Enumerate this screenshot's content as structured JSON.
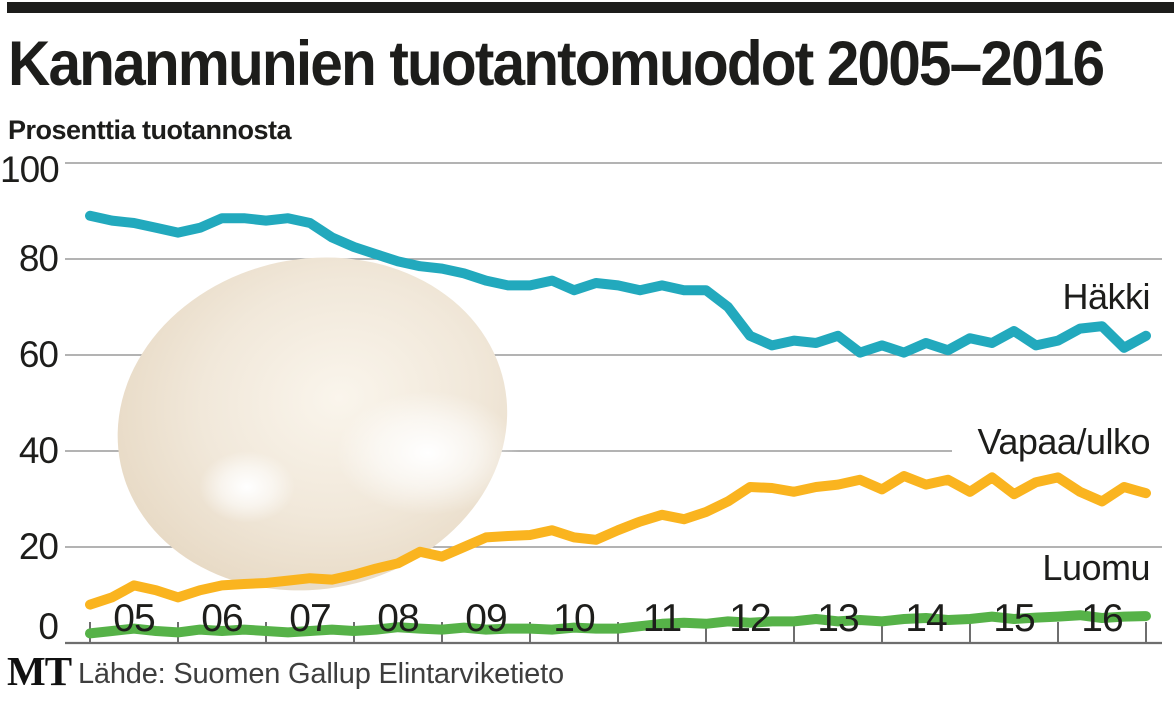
{
  "header": {
    "title": "Kananmunien tuotantomuodot 2005–2016",
    "subtitle": "Prosenttia tuotannosta"
  },
  "chart_data": {
    "type": "line",
    "title": "Kananmunien tuotantomuodot 2005–2016",
    "ylabel": "Prosenttia tuotannosta",
    "xlabel": "",
    "ylim": [
      0,
      100
    ],
    "grid": true,
    "legend_position": "right-inline",
    "x_start": 2005,
    "x_step": 0.25,
    "x_tick_labels": [
      "05",
      "06",
      "07",
      "08",
      "09",
      "10",
      "11",
      "12",
      "13",
      "14",
      "15",
      "16"
    ],
    "y_ticks": [
      100,
      80,
      60,
      40,
      20,
      0
    ],
    "series": [
      {
        "name": "Häkki",
        "color": "#22a9bd",
        "values": [
          89,
          88,
          87.5,
          86.5,
          85.5,
          86.5,
          88.5,
          88.5,
          88,
          88.5,
          87.5,
          84.5,
          82.5,
          81,
          79.5,
          78.5,
          78,
          77,
          75.5,
          74.5,
          74.5,
          75.5,
          73.5,
          75,
          74.5,
          73.5,
          74.5,
          73.5,
          73.5,
          70,
          64,
          62,
          63,
          62.5,
          64,
          60.5,
          62,
          60.5,
          62.5,
          61,
          63.5,
          62.5,
          65,
          62,
          63,
          65.5,
          66,
          61.5,
          64
        ]
      },
      {
        "name": "Vapaa/ulko",
        "color": "#fab41f",
        "values": [
          8,
          9.5,
          12,
          11,
          9.5,
          11,
          12,
          12.3,
          12.5,
          13,
          13.5,
          13.2,
          14.2,
          15.5,
          16.6,
          19,
          18,
          20,
          22,
          22.3,
          22.5,
          23.5,
          22,
          21.5,
          23.5,
          25.3,
          26.7,
          25.8,
          27.3,
          29.5,
          32.5,
          32.3,
          31.5,
          32.5,
          33,
          34,
          32,
          34.8,
          33,
          34,
          31.5,
          34.5,
          31,
          33.5,
          34.5,
          31.5,
          29.5,
          32.5,
          31.2
        ]
      },
      {
        "name": "Luomu",
        "color": "#56b248",
        "values": [
          2,
          2.5,
          3,
          2.5,
          2.2,
          2.8,
          2.5,
          2.8,
          2.5,
          2.2,
          2.5,
          2.8,
          2.5,
          2.8,
          3.3,
          3,
          2.8,
          3.2,
          2.8,
          3,
          3,
          2.8,
          3.2,
          3,
          3,
          3.5,
          4,
          4.2,
          4,
          4.5,
          4.2,
          4.5,
          4.5,
          5,
          4.5,
          4.8,
          4.5,
          5,
          5.2,
          4.8,
          5,
          5.5,
          5,
          5.3,
          5.5,
          5.8,
          5.2,
          5.5,
          5.6
        ]
      }
    ]
  },
  "colors": {
    "top_bar": "#1d1d1b",
    "grid": "#9a9a9a",
    "axis": "#6e6e6e",
    "text": "#1d1d1b",
    "source_text": "#3e3e3e"
  },
  "footer": {
    "logo": "MT",
    "source": "Lähde: Suomen Gallup Elintarviketieto"
  }
}
